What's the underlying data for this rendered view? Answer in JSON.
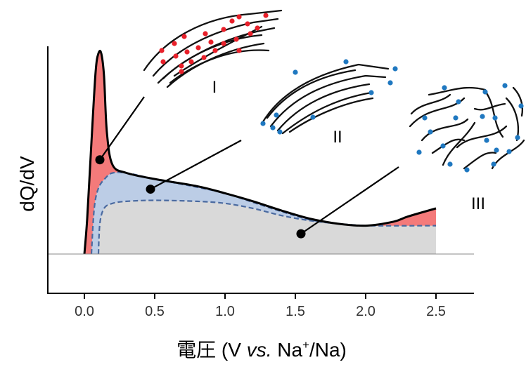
{
  "chart_data": {
    "type": "area",
    "xlabel": {
      "prefix": "電圧",
      "open": " (V ",
      "vs": "vs.",
      "mid": " Na",
      "sup": "+",
      "end": "/Na)"
    },
    "ylabel": "dQ/dV",
    "xlim": [
      -0.25,
      2.75
    ],
    "x_ticks": [
      0.0,
      0.5,
      1.0,
      1.5,
      2.0,
      2.5
    ],
    "x_tick_labels": [
      "0.0",
      "0.5",
      "1.0",
      "1.5",
      "2.0",
      "2.5"
    ],
    "grid": false,
    "colors": {
      "region_I": "#f47a7a",
      "region_II": "#bccde6",
      "region_III": "#d9d9d9",
      "dashed": "#4a6aa0",
      "red_dot": "#e8202a",
      "blue_dot": "#1f78c0"
    },
    "series": [
      {
        "label": "I",
        "points": [
          [
            0.0,
            0.0
          ],
          [
            0.02,
            0.35
          ],
          [
            0.05,
            1.1
          ],
          [
            0.08,
            1.8
          ],
          [
            0.1,
            1.98
          ],
          [
            0.12,
            1.98
          ],
          [
            0.14,
            1.75
          ],
          [
            0.16,
            1.2
          ],
          [
            0.2,
            0.88
          ],
          [
            0.3,
            0.8
          ],
          [
            0.5,
            0.74
          ],
          [
            0.8,
            0.67
          ],
          [
            1.0,
            0.6
          ],
          [
            1.2,
            0.52
          ],
          [
            1.4,
            0.43
          ],
          [
            1.6,
            0.35
          ],
          [
            1.8,
            0.3
          ],
          [
            2.0,
            0.28
          ],
          [
            2.2,
            0.32
          ],
          [
            2.3,
            0.37
          ],
          [
            2.5,
            0.45
          ]
        ]
      },
      {
        "label": "II",
        "points": [
          [
            0.05,
            0.0
          ],
          [
            0.07,
            0.45
          ],
          [
            0.1,
            0.65
          ],
          [
            0.15,
            0.75
          ],
          [
            0.2,
            0.8
          ],
          [
            0.3,
            0.8
          ],
          [
            0.5,
            0.74
          ],
          [
            0.8,
            0.66
          ],
          [
            1.0,
            0.6
          ],
          [
            1.2,
            0.51
          ],
          [
            1.4,
            0.42
          ],
          [
            1.6,
            0.34
          ],
          [
            1.8,
            0.3
          ],
          [
            2.0,
            0.28
          ]
        ]
      },
      {
        "label": "III",
        "points": [
          [
            0.1,
            0.0
          ],
          [
            0.11,
            0.3
          ],
          [
            0.14,
            0.45
          ],
          [
            0.2,
            0.5
          ],
          [
            0.3,
            0.52
          ],
          [
            0.5,
            0.53
          ],
          [
            0.8,
            0.52
          ],
          [
            1.0,
            0.5
          ],
          [
            1.2,
            0.45
          ],
          [
            1.4,
            0.38
          ],
          [
            1.6,
            0.33
          ],
          [
            1.8,
            0.3
          ],
          [
            2.0,
            0.28
          ],
          [
            2.5,
            0.28
          ]
        ]
      }
    ],
    "annotations": [
      {
        "label": "I",
        "point": [
          0.11,
          0.93
        ]
      },
      {
        "label": "II",
        "point": [
          0.47,
          0.64
        ]
      },
      {
        "label": "III",
        "point": [
          1.54,
          0.2
        ]
      }
    ]
  }
}
